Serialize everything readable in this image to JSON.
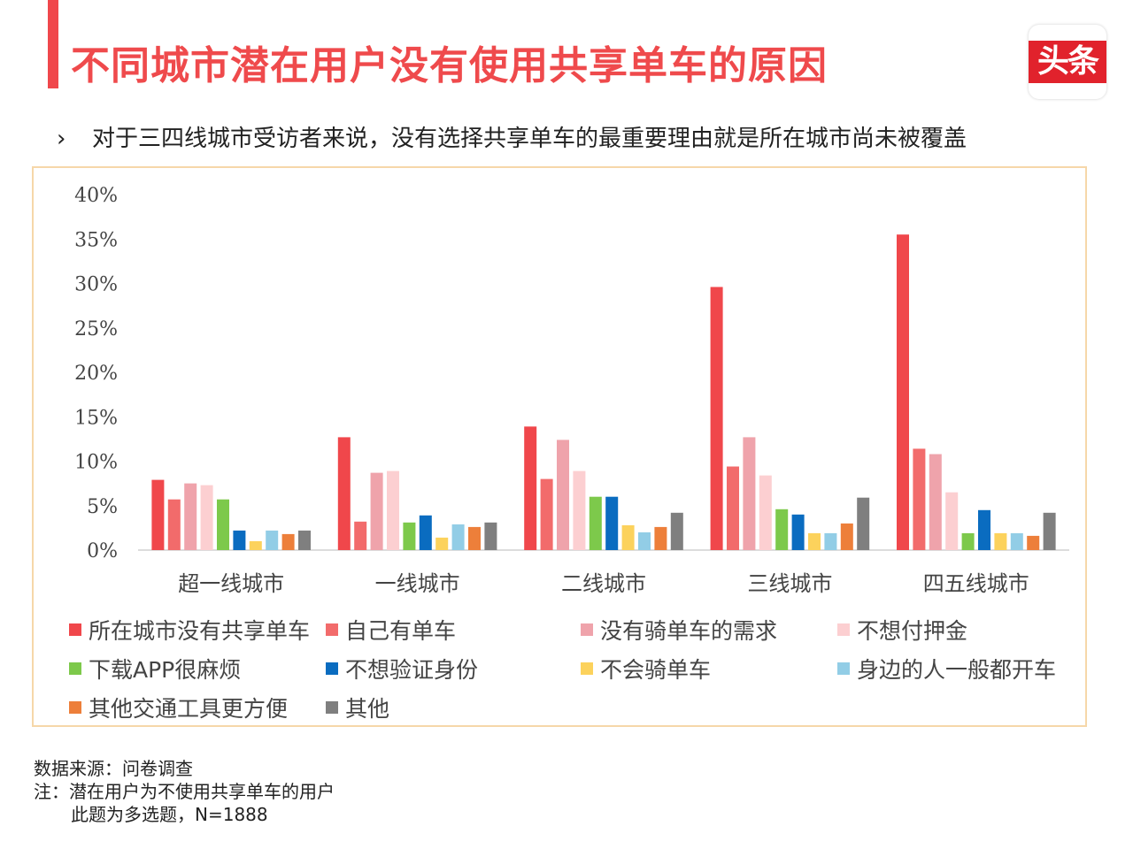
{
  "header": {
    "title": "不同城市潜在用户没有使用共享单车的原因",
    "logo_text": "头条",
    "accent_color": "#f0474b"
  },
  "bullet": {
    "icon": "chevron-right-icon",
    "glyph": "›",
    "text": "对于三四线城市受访者来说，没有选择共享单车的最重要理由就是所在城市尚未被覆盖"
  },
  "chart_data": {
    "type": "bar",
    "title": "",
    "xlabel": "",
    "ylabel": "",
    "ylim": [
      0,
      40
    ],
    "yticks": [
      "0%",
      "5%",
      "10%",
      "15%",
      "20%",
      "25%",
      "30%",
      "35%",
      "40%"
    ],
    "categories": [
      "超一线城市",
      "一线城市",
      "二线城市",
      "三线城市",
      "四五线城市"
    ],
    "series": [
      {
        "name": "所在城市没有共享单车",
        "color": "#f0474b",
        "values": [
          7.9,
          12.7,
          13.9,
          29.6,
          35.5
        ]
      },
      {
        "name": "自己有单车",
        "color": "#f26b6b",
        "values": [
          5.7,
          3.2,
          8.0,
          9.4,
          11.4
        ]
      },
      {
        "name": "没有骑单车的需求",
        "color": "#efa3ab",
        "values": [
          7.5,
          8.7,
          12.4,
          12.7,
          10.8
        ]
      },
      {
        "name": "不想付押金",
        "color": "#fccfd1",
        "values": [
          7.3,
          8.9,
          8.9,
          8.4,
          6.5
        ]
      },
      {
        "name": "下载APP很麻烦",
        "color": "#7dc94b",
        "values": [
          5.7,
          3.1,
          6.0,
          4.6,
          1.9
        ]
      },
      {
        "name": "不想验证身份",
        "color": "#0a6cc0",
        "values": [
          2.2,
          3.9,
          6.0,
          4.0,
          4.5
        ]
      },
      {
        "name": "不会骑单车",
        "color": "#fcd25c",
        "values": [
          1.0,
          1.4,
          2.8,
          1.9,
          1.9
        ]
      },
      {
        "name": "身边的人一般都开车",
        "color": "#92cde6",
        "values": [
          2.2,
          2.9,
          2.0,
          1.9,
          1.9
        ]
      },
      {
        "name": "其他交通工具更方便",
        "color": "#ed7f3a",
        "values": [
          1.8,
          2.6,
          2.6,
          3.0,
          1.6
        ]
      },
      {
        "name": "其他",
        "color": "#7f7f7f",
        "values": [
          2.2,
          3.1,
          4.2,
          5.9,
          4.2
        ]
      }
    ],
    "legend_position": "bottom"
  },
  "footer": {
    "source": "数据来源：问卷调查",
    "note": "注：潜在用户为不使用共享单车的用户",
    "note2": "此题为多选题，N=1888"
  }
}
